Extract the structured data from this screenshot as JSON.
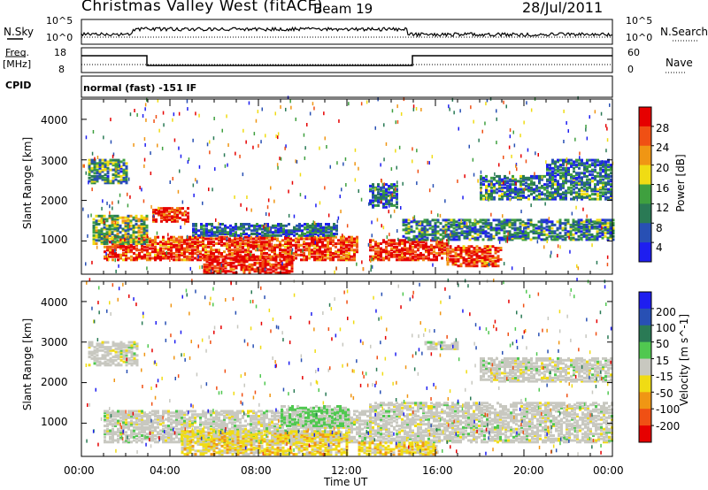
{
  "header": {
    "station": "Christmas Valley West (fitACF)",
    "beam": "Beam 19",
    "date": "28/Jul/2011"
  },
  "strip": {
    "nsky_label": "N.Sky",
    "nsky_ticks": [
      "10^5",
      "10^0"
    ],
    "nsearch_label": "N.Search",
    "nsearch_ticks": [
      "10^5",
      "10^0"
    ],
    "freq_label_1": "Freq.",
    "freq_label_2": "[MHz]",
    "freq_ticks": [
      "18",
      "8"
    ],
    "nave_label": "Nave",
    "nave_ticks": [
      "60",
      "0"
    ],
    "cpid_label": "CPID",
    "cpid_text": "normal (fast) -151 IF"
  },
  "chart_data": [
    {
      "type": "heatmap",
      "title": "",
      "ylabel": "Slant Range [km]",
      "xlabel": "",
      "yticks": [
        "1000",
        "2000",
        "3000",
        "4000"
      ],
      "ylim": [
        180,
        4500
      ],
      "xlim": [
        0,
        24
      ],
      "colorbar": {
        "label": "Power [dB]",
        "ticks": [
          "4",
          "8",
          "12",
          "16",
          "20",
          "24",
          "28"
        ],
        "colors": [
          "#1e1ef0",
          "#2850b4",
          "#2a7a55",
          "#3fa03f",
          "#f0dc14",
          "#f09614",
          "#f05014",
          "#e60000"
        ]
      },
      "regions": [
        {
          "t0": 0.3,
          "t1": 2.0,
          "r0": 2400,
          "r1": 3000,
          "level": 0.35
        },
        {
          "t0": 1.0,
          "t1": 12.5,
          "r0": 500,
          "r1": 1100,
          "level": 0.85
        },
        {
          "t0": 0.5,
          "t1": 3.0,
          "r0": 900,
          "r1": 1600,
          "level": 0.45
        },
        {
          "t0": 3.2,
          "t1": 4.8,
          "r0": 1450,
          "r1": 1800,
          "level": 0.9
        },
        {
          "t0": 5.0,
          "t1": 11.5,
          "r0": 1100,
          "r1": 1400,
          "level": 0.25
        },
        {
          "t0": 5.5,
          "t1": 9.5,
          "r0": 180,
          "r1": 600,
          "level": 0.95
        },
        {
          "t0": 13.0,
          "t1": 16.5,
          "r0": 500,
          "r1": 1000,
          "level": 0.9
        },
        {
          "t0": 14.5,
          "t1": 24.0,
          "r0": 1000,
          "r1": 1500,
          "level": 0.3
        },
        {
          "t0": 16.5,
          "t1": 19.0,
          "r0": 350,
          "r1": 850,
          "level": 0.85
        },
        {
          "t0": 18.0,
          "t1": 24.0,
          "r0": 2000,
          "r1": 2600,
          "level": 0.3
        },
        {
          "t0": 21.0,
          "t1": 24.0,
          "r0": 2600,
          "r1": 3000,
          "level": 0.25
        },
        {
          "t0": 13.0,
          "t1": 14.2,
          "r0": 1800,
          "r1": 2400,
          "level": 0.25
        }
      ]
    },
    {
      "type": "heatmap",
      "title": "",
      "ylabel": "Slant Range [km]",
      "xlabel": "Time UT",
      "xticks": [
        "00:00",
        "04:00",
        "08:00",
        "12:00",
        "16:00",
        "20:00",
        "00:00"
      ],
      "yticks": [
        "1000",
        "2000",
        "3000",
        "4000"
      ],
      "ylim": [
        180,
        4500
      ],
      "xlim": [
        0,
        24
      ],
      "colorbar": {
        "label": "Velocity [m s^-1]",
        "ticks": [
          "200",
          "100",
          "50",
          "15",
          "-15",
          "-50",
          "-100",
          "-200"
        ],
        "colors": [
          "#1e1ef0",
          "#2850b4",
          "#2a7a55",
          "#50c850",
          "#c8c8c0",
          "#f0dc14",
          "#f09614",
          "#f05014",
          "#e60000"
        ]
      },
      "regions": [
        {
          "t0": 0.3,
          "t1": 2.5,
          "r0": 2400,
          "r1": 3000,
          "kind": "gray"
        },
        {
          "t0": 1.0,
          "t1": 13.0,
          "r0": 500,
          "r1": 1300,
          "kind": "gray"
        },
        {
          "t0": 4.5,
          "t1": 12.0,
          "r0": 200,
          "r1": 800,
          "kind": "orange"
        },
        {
          "t0": 9.0,
          "t1": 12.0,
          "r0": 900,
          "r1": 1400,
          "kind": "green"
        },
        {
          "t0": 13.0,
          "t1": 24.0,
          "r0": 500,
          "r1": 1500,
          "kind": "gray"
        },
        {
          "t0": 18.0,
          "t1": 24.0,
          "r0": 2000,
          "r1": 2600,
          "kind": "gray"
        },
        {
          "t0": 15.5,
          "t1": 17.0,
          "r0": 2800,
          "r1": 3000,
          "kind": "gray"
        },
        {
          "t0": 12.5,
          "t1": 16.0,
          "r0": 200,
          "r1": 500,
          "kind": "orange"
        }
      ]
    }
  ]
}
